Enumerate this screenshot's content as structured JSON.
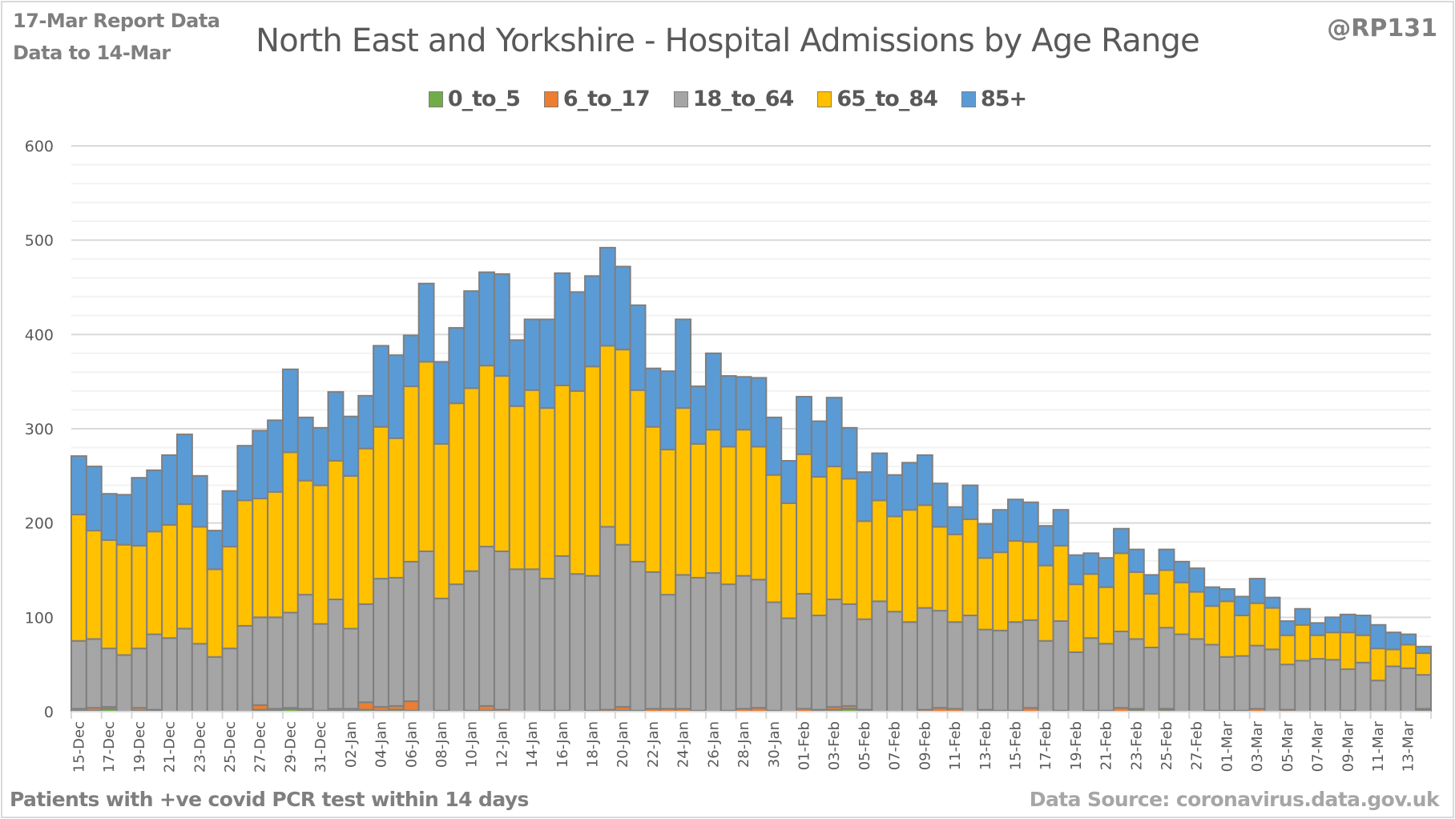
{
  "header": {
    "report_line": "17-Mar Report Data",
    "data_to_line": "Data to 14-Mar",
    "handle": "@RP131"
  },
  "footer": {
    "note": "Patients with  +ve covid PCR test within 14 days",
    "source": "Data Source: coronavirus.data.gov.uk"
  },
  "chart_data": {
    "type": "bar",
    "stacked": true,
    "title": "North East and Yorkshire - Hospital Admissions by Age Range",
    "xlabel": "",
    "ylabel": "",
    "ylim": [
      0,
      600
    ],
    "yticks": [
      0,
      100,
      200,
      300,
      400,
      500,
      600
    ],
    "minor_grid_step": 20,
    "grid": true,
    "legend_position": "top-center",
    "categories": [
      "15-Dec",
      "16-Dec",
      "17-Dec",
      "18-Dec",
      "19-Dec",
      "20-Dec",
      "21-Dec",
      "22-Dec",
      "23-Dec",
      "24-Dec",
      "25-Dec",
      "26-Dec",
      "27-Dec",
      "28-Dec",
      "29-Dec",
      "30-Dec",
      "31-Dec",
      "01-Jan",
      "02-Jan",
      "03-Jan",
      "04-Jan",
      "05-Jan",
      "06-Jan",
      "07-Jan",
      "08-Jan",
      "09-Jan",
      "10-Jan",
      "11-Jan",
      "12-Jan",
      "13-Jan",
      "14-Jan",
      "15-Jan",
      "16-Jan",
      "17-Jan",
      "18-Jan",
      "19-Jan",
      "20-Jan",
      "21-Jan",
      "22-Jan",
      "23-Jan",
      "24-Jan",
      "25-Jan",
      "26-Jan",
      "27-Jan",
      "28-Jan",
      "29-Jan",
      "30-Jan",
      "31-Jan",
      "01-Feb",
      "02-Feb",
      "03-Feb",
      "04-Feb",
      "05-Feb",
      "06-Feb",
      "07-Feb",
      "08-Feb",
      "09-Feb",
      "10-Feb",
      "11-Feb",
      "12-Feb",
      "13-Feb",
      "14-Feb",
      "15-Feb",
      "16-Feb",
      "17-Feb",
      "18-Feb",
      "19-Feb",
      "20-Feb",
      "21-Feb",
      "22-Feb",
      "23-Feb",
      "24-Feb",
      "25-Feb",
      "26-Feb",
      "27-Feb",
      "28-Feb",
      "01-Mar",
      "02-Mar",
      "03-Mar",
      "04-Mar",
      "05-Mar",
      "06-Mar",
      "07-Mar",
      "08-Mar",
      "09-Mar",
      "10-Mar",
      "11-Mar",
      "12-Mar",
      "13-Mar",
      "14-Mar"
    ],
    "xtick_every": 2,
    "series": [
      {
        "name": "0_to_5",
        "color": "#70ad47",
        "values": [
          1,
          1,
          3,
          0,
          1,
          1,
          0,
          0,
          0,
          0,
          0,
          0,
          2,
          1,
          3,
          1,
          0,
          1,
          1,
          2,
          1,
          2,
          1,
          0,
          0,
          0,
          0,
          1,
          0,
          0,
          0,
          0,
          0,
          0,
          0,
          0,
          1,
          0,
          0,
          0,
          0,
          0,
          0,
          0,
          0,
          0,
          0,
          0,
          0,
          1,
          2,
          3,
          1,
          0,
          0,
          0,
          0,
          0,
          0,
          0,
          1,
          0,
          0,
          0,
          0,
          0,
          0,
          0,
          1,
          0,
          2,
          0,
          2,
          0,
          0,
          0,
          0,
          0,
          0,
          0,
          0,
          0,
          0,
          0,
          1,
          0,
          0,
          0,
          0,
          2
        ]
      },
      {
        "name": "6_to_17",
        "color": "#ed7d31",
        "values": [
          2,
          3,
          2,
          0,
          3,
          1,
          0,
          0,
          0,
          0,
          0,
          0,
          5,
          2,
          1,
          2,
          1,
          2,
          2,
          8,
          4,
          4,
          10,
          0,
          1,
          0,
          1,
          5,
          2,
          0,
          0,
          1,
          1,
          0,
          1,
          2,
          4,
          1,
          3,
          3,
          3,
          1,
          0,
          1,
          3,
          4,
          1,
          0,
          3,
          1,
          3,
          3,
          1,
          0,
          0,
          0,
          2,
          4,
          3,
          0,
          1,
          1,
          1,
          4,
          0,
          1,
          0,
          1,
          0,
          4,
          1,
          0,
          1,
          0,
          0,
          1,
          1,
          1,
          3,
          0,
          2,
          0,
          0,
          0,
          0,
          0,
          0,
          0,
          0,
          1
        ]
      },
      {
        "name": "18_to_64",
        "color": "#a5a5a5",
        "values": [
          72,
          73,
          62,
          60,
          63,
          80,
          78,
          88,
          72,
          58,
          67,
          91,
          93,
          97,
          101,
          121,
          92,
          116,
          85,
          104,
          136,
          136,
          148,
          170,
          119,
          135,
          148,
          169,
          168,
          151,
          151,
          140,
          164,
          146,
          143,
          194,
          172,
          158,
          145,
          121,
          142,
          141,
          147,
          134,
          141,
          136,
          115,
          99,
          122,
          100,
          114,
          108,
          96,
          117,
          106,
          95,
          108,
          103,
          92,
          102,
          85,
          85,
          94,
          93,
          75,
          95,
          63,
          77,
          71,
          81,
          74,
          68,
          86,
          82,
          77,
          70,
          57,
          58,
          67,
          66,
          48,
          54,
          56,
          55,
          44,
          52,
          33,
          48,
          46,
          36
        ]
      },
      {
        "name": "65_to_84",
        "color": "#ffc000",
        "values": [
          134,
          115,
          115,
          117,
          109,
          109,
          120,
          132,
          124,
          93,
          108,
          133,
          126,
          133,
          170,
          121,
          147,
          147,
          162,
          165,
          161,
          148,
          186,
          201,
          164,
          192,
          194,
          192,
          186,
          173,
          190,
          181,
          181,
          194,
          222,
          192,
          207,
          182,
          154,
          154,
          177,
          142,
          152,
          146,
          155,
          141,
          135,
          122,
          148,
          147,
          141,
          133,
          104,
          107,
          101,
          119,
          109,
          89,
          93,
          102,
          76,
          83,
          86,
          83,
          80,
          80,
          72,
          68,
          60,
          83,
          71,
          57,
          61,
          55,
          50,
          41,
          59,
          43,
          45,
          44,
          31,
          38,
          25,
          29,
          39,
          29,
          34,
          18,
          25,
          23
        ]
      },
      {
        "name": "85+",
        "color": "#5b9bd5",
        "values": [
          62,
          68,
          49,
          53,
          72,
          65,
          74,
          74,
          54,
          41,
          59,
          58,
          72,
          76,
          88,
          67,
          61,
          73,
          63,
          56,
          86,
          88,
          54,
          83,
          87,
          80,
          103,
          99,
          108,
          70,
          75,
          94,
          119,
          105,
          96,
          104,
          88,
          90,
          62,
          83,
          94,
          61,
          81,
          75,
          56,
          73,
          61,
          45,
          61,
          59,
          73,
          54,
          52,
          50,
          44,
          50,
          53,
          46,
          29,
          36,
          36,
          45,
          44,
          42,
          42,
          38,
          31,
          22,
          31,
          26,
          24,
          20,
          22,
          22,
          25,
          20,
          13,
          20,
          26,
          11,
          15,
          17,
          13,
          16,
          19,
          21,
          25,
          18,
          11,
          7
        ]
      }
    ]
  }
}
